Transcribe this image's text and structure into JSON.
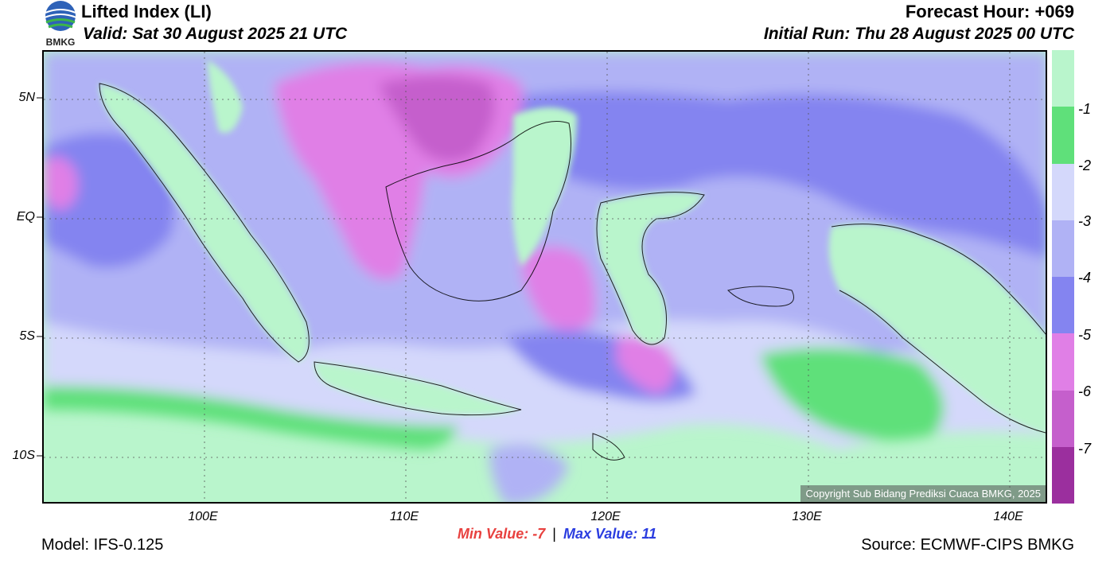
{
  "header": {
    "title": "Lifted Index (LI)",
    "valid": "Valid: Sat 30 August 2025 21 UTC",
    "forecast_hour": "Forecast Hour: +069",
    "initial_run": "Initial Run: Thu 28 August 2025 00 UTC",
    "logo_text": "BMKG"
  },
  "axes": {
    "lat_labels": [
      "5N",
      "EQ",
      "5S",
      "10S"
    ],
    "lon_labels": [
      "100E",
      "110E",
      "120E",
      "130E",
      "140E"
    ]
  },
  "stats": {
    "min_label": "Min Value:",
    "min_value": "-7",
    "separator": "|",
    "max_label": "Max Value:",
    "max_value": "11"
  },
  "footer": {
    "model": "Model: IFS-0.125",
    "source": "Source: ECMWF-CIPS BMKG",
    "copyright": "Copyright Sub Bidang Prediksi Cuaca BMKG, 2025"
  },
  "colorbar": {
    "labels": [
      "-1",
      "-2",
      "-3",
      "-4",
      "-5",
      "-6",
      "-7"
    ],
    "colors": [
      "#b9f5cc",
      "#5fe07a",
      "#d4d8fb",
      "#b0b2f5",
      "#8484f0",
      "#e07fe6",
      "#c55fcc",
      "#9b2f9e"
    ]
  },
  "colors": {
    "very_stable": "#b9f5cc",
    "stable": "#5fe07a",
    "light_lavender": "#d4d8fb",
    "lavender": "#b0b2f5",
    "blue_violet": "#8484f0",
    "pink": "#e07fe6",
    "magenta": "#c55fcc",
    "deep_purple": "#9b2f9e"
  }
}
